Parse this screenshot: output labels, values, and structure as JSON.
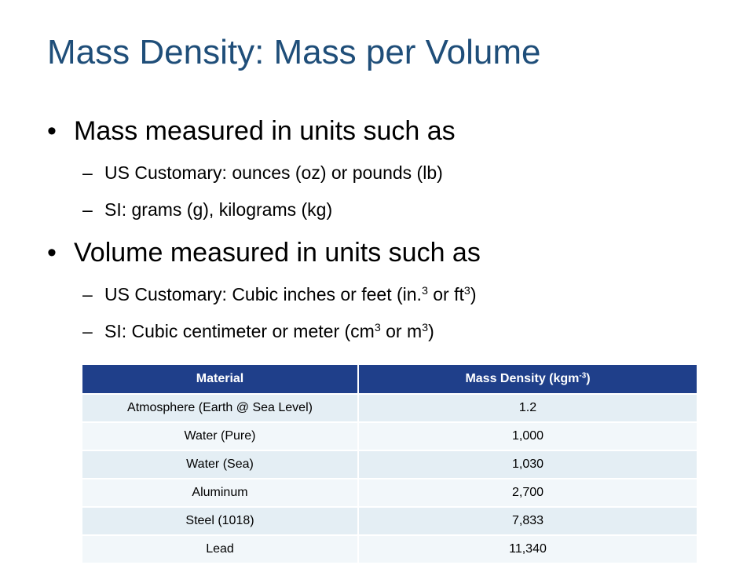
{
  "slide": {
    "title": "Mass Density: Mass per Volume",
    "bullet1": "Mass measured in units such as",
    "bullet1_sub1": "US Customary: ounces (oz) or pounds (lb)",
    "bullet1_sub2": "SI: grams (g), kilograms (kg)",
    "bullet2": "Volume measured in units such as",
    "bullet2_sub1": {
      "part1": "US Customary: Cubic inches or feet (in.",
      "sup1": "3",
      "part2": " or ft",
      "sup2": "3",
      "part3": ")"
    },
    "bullet2_sub2": {
      "part1": "SI: Cubic centimeter or meter (cm",
      "sup1": "3",
      "part2": " or m",
      "sup2": "3",
      "part3": ")"
    },
    "bullet_symbol": "•",
    "dash_symbol": "–"
  },
  "table": {
    "header_material": "Material",
    "header_density": {
      "text": "Mass Density (kgm",
      "sup": "-3",
      "close": ")"
    },
    "rows": [
      {
        "material": "Atmosphere (Earth @ Sea Level)",
        "density": "1.2"
      },
      {
        "material": "Water (Pure)",
        "density": "1,000"
      },
      {
        "material": "Water (Sea)",
        "density": "1,030"
      },
      {
        "material": "Aluminum",
        "density": "2,700"
      },
      {
        "material": "Steel (1018)",
        "density": "7,833"
      },
      {
        "material": "Lead",
        "density": "11,340"
      }
    ]
  },
  "colors": {
    "title": "#1f4e79",
    "table_header": "#1f3f8a",
    "row_band_dark": "#e4eef4",
    "row_band_light": "#f2f7fa"
  }
}
